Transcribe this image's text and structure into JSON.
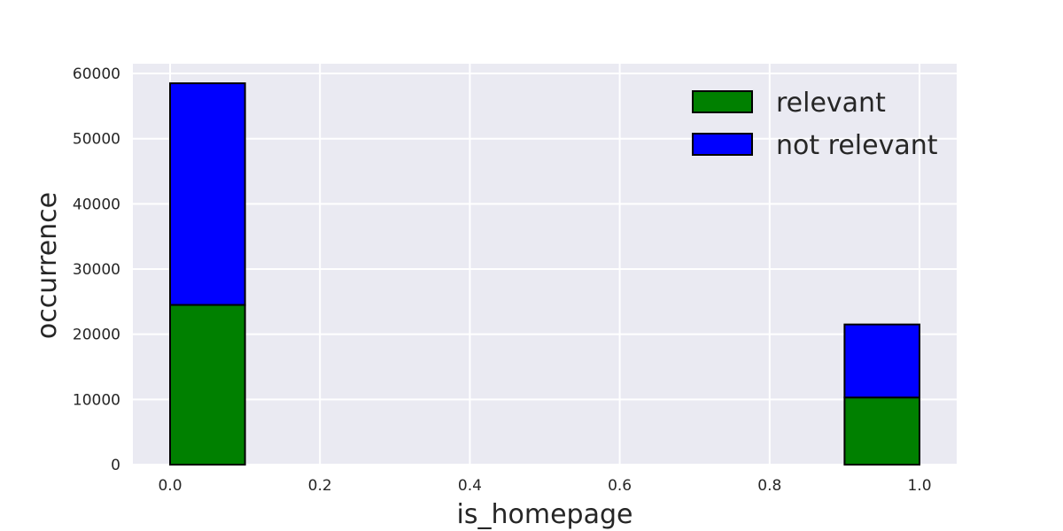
{
  "chart_data": {
    "type": "bar",
    "stacked": true,
    "xlabel": "is_homepage",
    "ylabel": "occurrence",
    "xlim": [
      -0.05,
      1.05
    ],
    "ylim": [
      0,
      61500
    ],
    "x_ticks": [
      0.0,
      0.2,
      0.4,
      0.6,
      0.8,
      1.0
    ],
    "x_tick_labels": [
      "0.0",
      "0.2",
      "0.4",
      "0.6",
      "0.8",
      "1.0"
    ],
    "y_ticks": [
      0,
      10000,
      20000,
      30000,
      40000,
      50000,
      60000
    ],
    "y_tick_labels": [
      "0",
      "10000",
      "20000",
      "30000",
      "40000",
      "50000",
      "60000"
    ],
    "bins": [
      {
        "x_start": 0.0,
        "x_end": 0.1
      },
      {
        "x_start": 0.9,
        "x_end": 1.0
      }
    ],
    "series": [
      {
        "name": "relevant",
        "color": "#008000",
        "values": [
          24500,
          10300
        ]
      },
      {
        "name": "not relevant",
        "color": "#0000ff",
        "values": [
          34000,
          11200
        ]
      }
    ],
    "grid": true,
    "background": "#eaeaf2",
    "legend_position": "top-right"
  }
}
